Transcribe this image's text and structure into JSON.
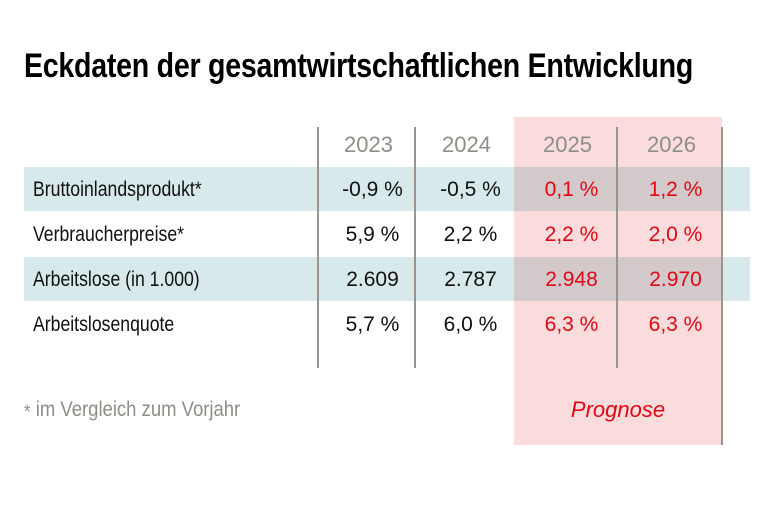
{
  "title": "Eckdaten der gesamtwirtschaftlichen Entwicklung",
  "table": {
    "year_headers": [
      "2023",
      "2024",
      "2025",
      "2026"
    ],
    "rows": [
      {
        "label": "Bruttoinlandsprodukt*",
        "values": [
          "-0,9 %",
          "-0,5 %",
          "0,1 %",
          "1,2 %"
        ]
      },
      {
        "label": "Verbraucherpreise*",
        "values": [
          "5,9 %",
          "2,2 %",
          "2,2 %",
          "2,0 %"
        ]
      },
      {
        "label": "Arbeitslose (in 1.000)",
        "values": [
          "2.609",
          "2.787",
          "2.948",
          "2.970"
        ]
      },
      {
        "label": "Arbeitslosenquote",
        "values": [
          "5,7 %",
          "6,0 %",
          "6,3 %",
          "6,3 %"
        ]
      }
    ],
    "forecast_label": "Prognose",
    "forecast_columns": [
      "2025",
      "2026"
    ]
  },
  "footnote": {
    "marker": "*",
    "text": "im Vergleich zum Vorjahr"
  },
  "colors": {
    "accent_red": "#e30613",
    "stripe_blue": "#d8e9ec",
    "forecast_pink": "#fadcdc",
    "grid_gray": "#96968e",
    "muted_gray": "#8e8e86",
    "text_black": "#111111"
  },
  "chart_data": {
    "type": "table",
    "title": "Eckdaten der gesamtwirtschaftlichen Entwicklung",
    "columns": [
      "2023",
      "2024",
      "2025",
      "2026"
    ],
    "rows": [
      [
        "Bruttoinlandsprodukt*",
        "-0,9 %",
        "-0,5 %",
        "0,1 %",
        "1,2 %"
      ],
      [
        "Verbraucherpreise*",
        "5,9 %",
        "2,2 %",
        "2,2 %",
        "2,0 %"
      ],
      [
        "Arbeitslose (in 1.000)",
        "2.609",
        "2.787",
        "2.948",
        "2.970"
      ],
      [
        "Arbeitslosenquote",
        "5,7 %",
        "6,0 %",
        "6,3 %",
        "6,3 %"
      ]
    ],
    "series": [
      {
        "name": "Bruttoinlandsprodukt",
        "unit": "% im Vergleich zum Vorjahr",
        "values": [
          -0.9,
          -0.5,
          0.1,
          1.2
        ]
      },
      {
        "name": "Verbraucherpreise",
        "unit": "% im Vergleich zum Vorjahr",
        "values": [
          5.9,
          2.2,
          2.2,
          2.0
        ]
      },
      {
        "name": "Arbeitslose",
        "unit": "in 1.000",
        "values": [
          2609,
          2787,
          2948,
          2970
        ]
      },
      {
        "name": "Arbeitslosenquote",
        "unit": "%",
        "values": [
          5.7,
          6.0,
          6.3,
          6.3
        ]
      }
    ],
    "forecast_years": [
      2025,
      2026
    ],
    "forecast_label": "Prognose",
    "footnote": "* im Vergleich zum Vorjahr",
    "legend_position": "none",
    "grid": "vertical-separators"
  }
}
